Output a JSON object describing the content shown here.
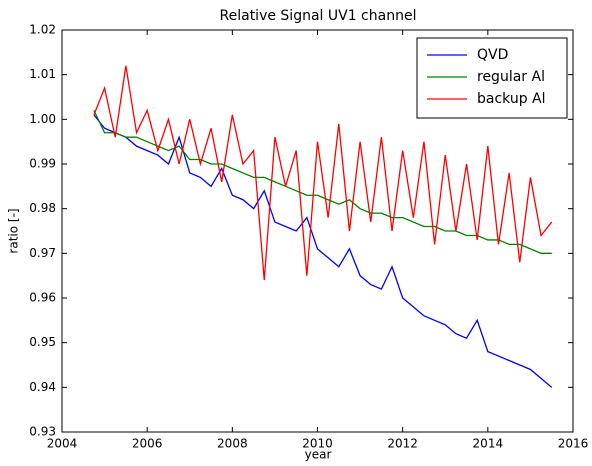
{
  "chart_data": {
    "type": "line",
    "title": "Relative Signal UV1 channel",
    "x_label": "year",
    "y_label": "ratio [-]",
    "x": [
      2004.75,
      2005,
      2005.25,
      2005.5,
      2005.75,
      2006,
      2006.25,
      2006.5,
      2006.75,
      2007,
      2007.25,
      2007.5,
      2007.75,
      2008,
      2008.25,
      2008.5,
      2008.75,
      2009,
      2009.25,
      2009.5,
      2009.75,
      2010,
      2010.25,
      2010.5,
      2010.75,
      2011,
      2011.25,
      2011.5,
      2011.75,
      2012,
      2012.25,
      2012.5,
      2012.75,
      2013,
      2013.25,
      2013.5,
      2013.75,
      2014,
      2014.25,
      2014.5,
      2014.75,
      2015,
      2015.25,
      2015.5
    ],
    "series": [
      {
        "name": "QVD",
        "color": "#0000ff",
        "values": [
          1.001,
          0.998,
          0.997,
          0.996,
          0.994,
          0.993,
          0.992,
          0.99,
          0.996,
          0.988,
          0.987,
          0.985,
          0.989,
          0.983,
          0.982,
          0.98,
          0.984,
          0.977,
          0.976,
          0.975,
          0.978,
          0.971,
          0.969,
          0.967,
          0.971,
          0.965,
          0.963,
          0.962,
          0.967,
          0.96,
          0.958,
          0.956,
          0.955,
          0.954,
          0.952,
          0.951,
          0.955,
          0.948,
          0.947,
          0.946,
          0.945,
          0.944,
          0.942,
          0.94
        ]
      },
      {
        "name": "regular Al",
        "color": "#008000",
        "values": [
          1.002,
          0.997,
          0.997,
          0.996,
          0.996,
          0.995,
          0.994,
          0.993,
          0.994,
          0.991,
          0.991,
          0.99,
          0.99,
          0.989,
          0.988,
          0.987,
          0.987,
          0.986,
          0.985,
          0.984,
          0.983,
          0.983,
          0.982,
          0.981,
          0.982,
          0.98,
          0.979,
          0.979,
          0.978,
          0.978,
          0.977,
          0.976,
          0.976,
          0.975,
          0.975,
          0.974,
          0.974,
          0.973,
          0.973,
          0.972,
          0.972,
          0.971,
          0.97,
          0.97
        ]
      },
      {
        "name": "backup Al",
        "color": "#ff0000",
        "values": [
          1.001,
          1.007,
          0.996,
          1.012,
          0.997,
          1.002,
          0.993,
          1.0,
          0.99,
          1.0,
          0.99,
          0.998,
          0.986,
          1.001,
          0.99,
          0.993,
          0.964,
          0.996,
          0.985,
          0.993,
          0.965,
          0.995,
          0.978,
          0.999,
          0.975,
          0.995,
          0.977,
          0.996,
          0.975,
          0.993,
          0.978,
          0.995,
          0.972,
          0.992,
          0.975,
          0.99,
          0.973,
          0.994,
          0.972,
          0.988,
          0.968,
          0.987,
          0.974,
          0.977
        ]
      }
    ],
    "xlim": [
      2004,
      2016
    ],
    "xticks": [
      2004,
      2006,
      2008,
      2010,
      2012,
      2014,
      2016
    ],
    "ylim": [
      0.93,
      1.02
    ],
    "yticks": [
      0.93,
      0.94,
      0.95,
      0.96,
      0.97,
      0.98,
      0.99,
      {
        "value": 1,
        "label": "1.00"
      },
      1.01,
      1.02
    ],
    "grid": false,
    "legend": "upper-right"
  }
}
